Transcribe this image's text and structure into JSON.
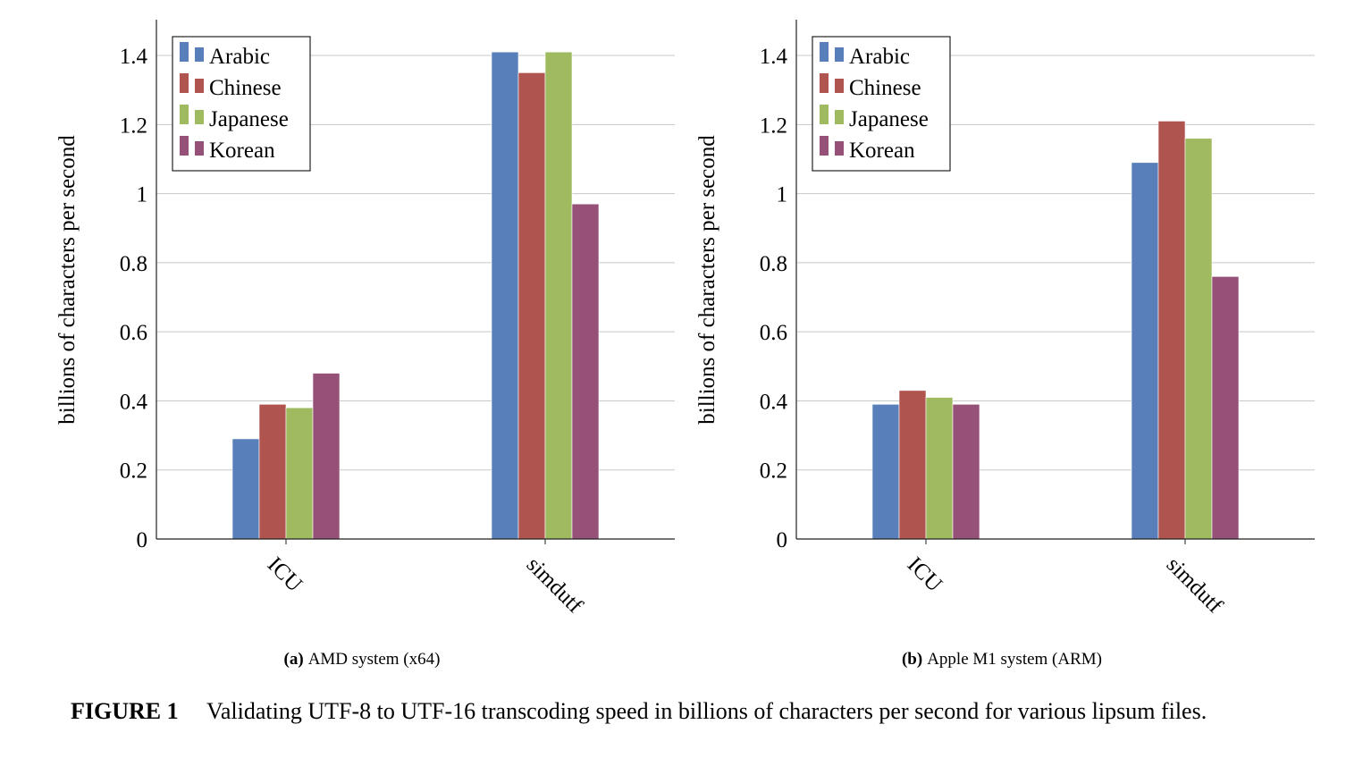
{
  "figure_caption": {
    "label": "FIGURE 1",
    "text": "Validating UTF-8 to UTF-16 transcoding speed in billions of characters per second for various lipsum files."
  },
  "colors": {
    "Arabic": "#587fb9",
    "Chinese": "#b0544f",
    "Japanese": "#a0ba60",
    "Korean": "#965179"
  },
  "chart_data": [
    {
      "type": "bar",
      "subcaption_label": "(a)",
      "subcaption": "AMD system (x64)",
      "categories": [
        "ICU",
        "simdutf"
      ],
      "series": [
        {
          "name": "Arabic",
          "values": [
            0.29,
            1.41
          ]
        },
        {
          "name": "Chinese",
          "values": [
            0.39,
            1.35
          ]
        },
        {
          "name": "Japanese",
          "values": [
            0.38,
            1.41
          ]
        },
        {
          "name": "Korean",
          "values": [
            0.48,
            0.97
          ]
        }
      ],
      "ylabel": "billions of characters per second",
      "yticks": [
        "0",
        "0.2",
        "0.4",
        "0.6",
        "0.8",
        "1",
        "1.2",
        "1.4"
      ],
      "ylim": [
        0,
        1.5
      ],
      "grid": true,
      "legend": "top-left"
    },
    {
      "type": "bar",
      "subcaption_label": "(b)",
      "subcaption": "Apple M1 system (ARM)",
      "categories": [
        "ICU",
        "simdutf"
      ],
      "series": [
        {
          "name": "Arabic",
          "values": [
            0.39,
            1.09
          ]
        },
        {
          "name": "Chinese",
          "values": [
            0.43,
            1.21
          ]
        },
        {
          "name": "Japanese",
          "values": [
            0.41,
            1.16
          ]
        },
        {
          "name": "Korean",
          "values": [
            0.39,
            0.76
          ]
        }
      ],
      "ylabel": "billions of characters per second",
      "yticks": [
        "0",
        "0.2",
        "0.4",
        "0.6",
        "0.8",
        "1",
        "1.2",
        "1.4"
      ],
      "ylim": [
        0,
        1.5
      ],
      "grid": true,
      "legend": "top-left"
    }
  ]
}
